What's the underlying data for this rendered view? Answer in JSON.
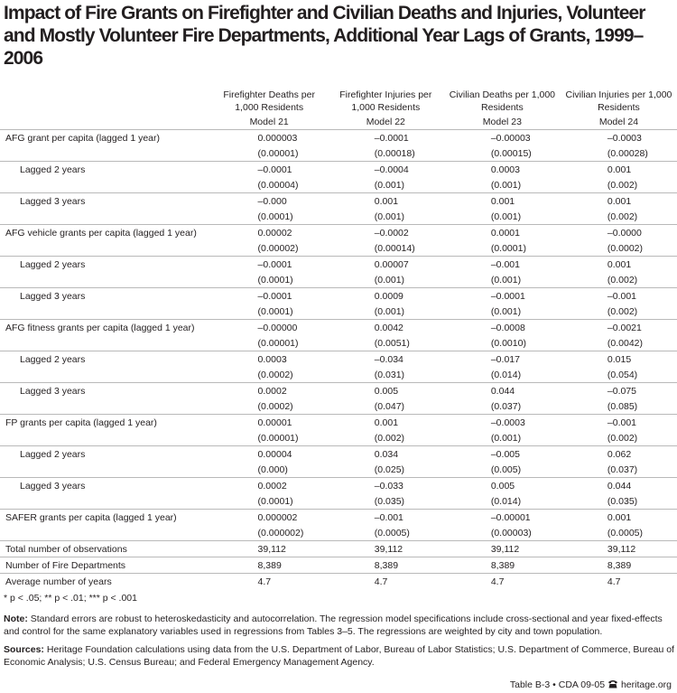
{
  "title": "Impact of Fire Grants on Firefighter and Civilian Deaths and Injuries, Volunteer and Mostly Volunteer Fire Departments, Additional Year Lags of Grants, 1999–2006",
  "header": {
    "columns": [
      {
        "label": "Firefighter Deaths per 1,000 Residents",
        "model": "Model 21"
      },
      {
        "label": "Firefighter Injuries per 1,000 Residents",
        "model": "Model 22"
      },
      {
        "label": "Civilian Deaths per 1,000 Residents",
        "model": "Model 23"
      },
      {
        "label": "Civilian Injuries per 1,000 Residents",
        "model": "Model 24"
      }
    ]
  },
  "groups": [
    {
      "label": "AFG grant per capita (lagged 1 year)",
      "coef": [
        "0.000003",
        "–0.0001",
        "–0.00003",
        "–0.0003"
      ],
      "se": [
        "(0.00001)",
        "(0.00018)",
        "(0.00015)",
        "(0.00028)"
      ],
      "lags": [
        {
          "label": "Lagged 2 years",
          "coef": [
            "–0.0001",
            "–0.0004",
            "0.0003",
            "0.001"
          ],
          "se": [
            "(0.00004)",
            "(0.001)",
            "(0.001)",
            "(0.002)"
          ]
        },
        {
          "label": "Lagged 3 years",
          "coef": [
            "–0.000",
            "0.001",
            "0.001",
            "0.001"
          ],
          "se": [
            "(0.0001)",
            "(0.001)",
            "(0.001)",
            "(0.002)"
          ]
        }
      ]
    },
    {
      "label": "AFG vehicle grants per capita (lagged 1 year)",
      "coef": [
        "0.00002",
        "–0.0002",
        "0.0001",
        "–0.0000"
      ],
      "se": [
        "(0.00002)",
        "(0.00014)",
        "(0.0001)",
        "(0.0002)"
      ],
      "lags": [
        {
          "label": "Lagged 2 years",
          "coef": [
            "–0.0001",
            "0.00007",
            "–0.001",
            "0.001"
          ],
          "se": [
            "(0.0001)",
            "(0.001)",
            "(0.001)",
            "(0.002)"
          ]
        },
        {
          "label": "Lagged 3 years",
          "coef": [
            "–0.0001",
            "0.0009",
            "–0.0001",
            "–0.001"
          ],
          "se": [
            "(0.0001)",
            "(0.001)",
            "(0.001)",
            "(0.002)"
          ]
        }
      ]
    },
    {
      "label": "AFG fitness grants per capita (lagged 1 year)",
      "coef": [
        "–0.00000",
        "0.0042",
        "–0.0008",
        "–0.0021"
      ],
      "se": [
        "(0.00001)",
        "(0.0051)",
        "(0.0010)",
        "(0.0042)"
      ],
      "lags": [
        {
          "label": "Lagged 2 years",
          "coef": [
            "0.0003",
            "–0.034",
            "–0.017",
            "0.015"
          ],
          "se": [
            "(0.0002)",
            "(0.031)",
            "(0.014)",
            "(0.054)"
          ]
        },
        {
          "label": "Lagged 3 years",
          "coef": [
            "0.0002",
            "0.005",
            "0.044",
            "–0.075"
          ],
          "se": [
            "(0.0002)",
            "(0.047)",
            "(0.037)",
            "(0.085)"
          ]
        }
      ]
    },
    {
      "label": "FP grants per capita (lagged 1 year)",
      "coef": [
        "0.00001",
        "0.001",
        "–0.0003",
        "–0.001"
      ],
      "se": [
        "(0.00001)",
        "(0.002)",
        "(0.001)",
        "(0.002)"
      ],
      "lags": [
        {
          "label": "Lagged 2 years",
          "coef": [
            "0.00004",
            "0.034",
            "–0.005",
            "0.062"
          ],
          "se": [
            "(0.000)",
            "(0.025)",
            "(0.005)",
            "(0.037)"
          ]
        },
        {
          "label": "Lagged 3 years",
          "coef": [
            "0.0002",
            "–0.033",
            "0.005",
            "0.044"
          ],
          "se": [
            "(0.0001)",
            "(0.035)",
            "(0.014)",
            "(0.035)"
          ]
        }
      ]
    },
    {
      "label": "SAFER grants per capita (lagged 1 year)",
      "coef": [
        "0.000002",
        "–0.001",
        "–0.00001",
        "0.001"
      ],
      "se": [
        "(0.000002)",
        "(0.0005)",
        "(0.00003)",
        "(0.0005)"
      ],
      "lags": []
    }
  ],
  "summary": [
    {
      "label": "Total number of observations",
      "values": [
        "39,112",
        "39,112",
        "39,112",
        "39,112"
      ]
    },
    {
      "label": "Number of Fire Departments",
      "values": [
        "8,389",
        "8,389",
        "8,389",
        "8,389"
      ]
    },
    {
      "label": "Average number of years",
      "values": [
        "4.7",
        "4.7",
        "4.7",
        "4.7"
      ]
    }
  ],
  "footnotes": {
    "significance": "* p < .05; ** p < .01; *** p < .001",
    "note": {
      "label": "Note:",
      "text": "Standard errors are robust to heteroskedasticity and autocorrelation. The regression model specifications include cross-sectional and year fixed-effects and control for the same explanatory variables used in regressions from Tables 3–5. The regressions are weighted by city and town population."
    },
    "sources": {
      "label": "Sources:",
      "text": "Heritage Foundation calculations using data from the U.S. Department of Labor, Bureau of Labor Statistics; U.S. Department of Commerce, Bureau of Economic Analysis; U.S. Census Bureau; and Federal Emergency Management Agency."
    }
  },
  "footer": {
    "id": "Table B-3 • CDA 09-05",
    "site": "heritage.org"
  }
}
